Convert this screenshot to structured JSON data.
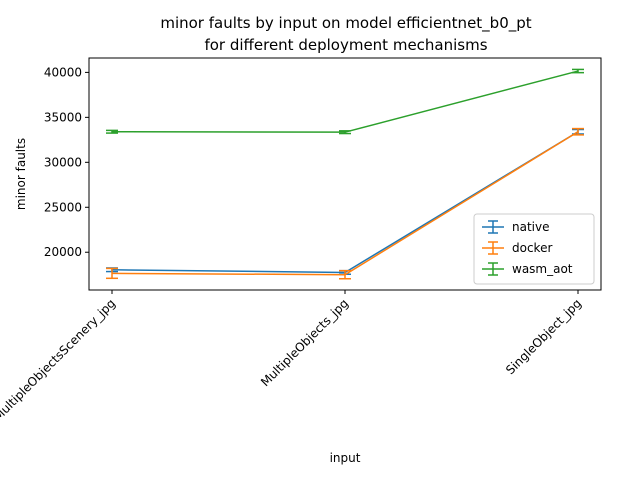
{
  "chart_data": {
    "type": "line",
    "title": "minor faults by input on model efficientnet_b0_pt",
    "subtitle": "for different deployment mechanisms",
    "xlabel": "input",
    "ylabel": "minor faults",
    "categories": [
      "MultipleObjectsScenery_jpg",
      "MultipleObjects_jpg",
      "SingleObject_jpg"
    ],
    "ylim": [
      15800,
      41600
    ],
    "yticks": [
      20000,
      25000,
      30000,
      35000,
      40000
    ],
    "grid": false,
    "legend": "lower-right",
    "series": [
      {
        "name": "native",
        "color": "#1f77b4",
        "values": [
          18050,
          17750,
          33400
        ],
        "errors": [
          200,
          200,
          250
        ]
      },
      {
        "name": "docker",
        "color": "#ff7f0e",
        "values": [
          17650,
          17500,
          33400
        ],
        "errors": [
          550,
          450,
          350
        ]
      },
      {
        "name": "wasm_aot",
        "color": "#2ca02c",
        "values": [
          33400,
          33350,
          40150
        ],
        "errors": [
          150,
          150,
          180
        ]
      }
    ]
  }
}
